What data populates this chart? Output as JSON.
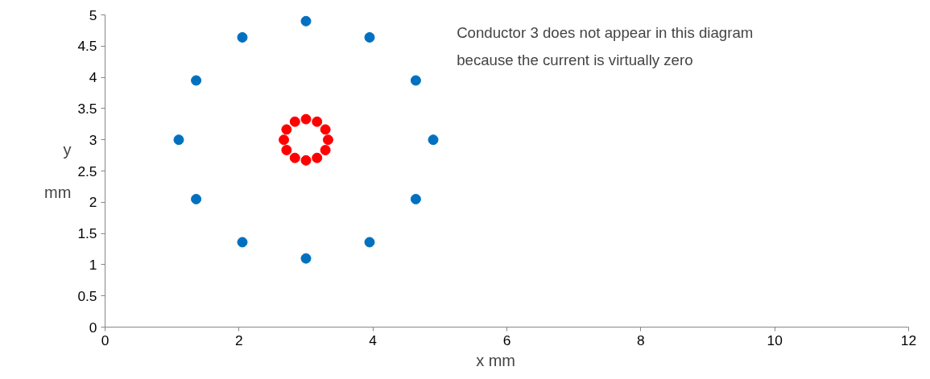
{
  "chart_data": {
    "type": "scatter",
    "xlabel": "x      mm",
    "ylabel": "y mm",
    "xlim": [
      0,
      12
    ],
    "ylim": [
      0,
      5
    ],
    "xticks": [
      0,
      2,
      4,
      6,
      8,
      10,
      12
    ],
    "yticks": [
      0,
      0.5,
      1,
      1.5,
      2,
      2.5,
      3,
      3.5,
      4,
      4.5,
      5
    ],
    "grid": false,
    "marker": "circle",
    "annotations": [
      {
        "text": "Conductor 3 does not appear in this diagram\nbecause the current is virtually zero"
      }
    ],
    "series": [
      {
        "color": "#0070c0",
        "x": [
          3,
          3.95,
          4.64,
          4.9,
          4.64,
          3.95,
          3,
          2.05,
          1.36,
          1.1,
          1.36,
          2.05
        ],
        "values": [
          4.9,
          4.64,
          3.95,
          3,
          2.05,
          1.36,
          1.1,
          1.36,
          2.05,
          3,
          3.95,
          4.64
        ]
      },
      {
        "color": "#ff0000",
        "x": [
          3,
          3.165,
          3.29,
          3.33,
          3.29,
          3.165,
          3,
          2.835,
          2.71,
          2.67,
          2.71,
          2.835
        ],
        "values": [
          3.33,
          3.29,
          3.165,
          3,
          2.835,
          2.71,
          2.67,
          2.71,
          2.835,
          3,
          3.165,
          3.29
        ]
      }
    ]
  }
}
